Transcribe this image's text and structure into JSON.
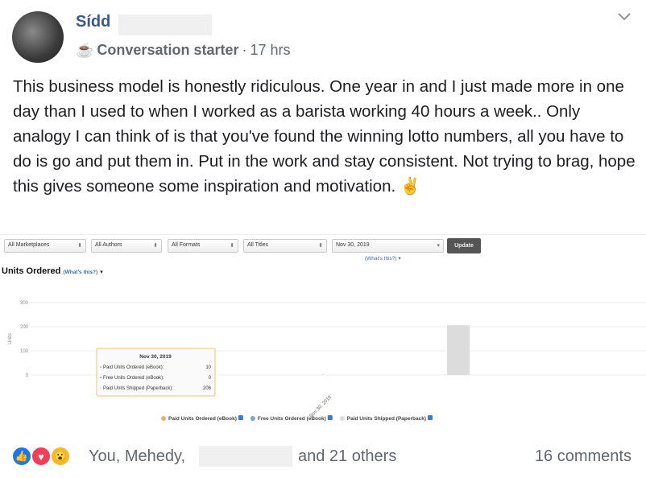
{
  "post": {
    "author": "Sídd",
    "badge_icon": "coffee-cup-icon",
    "badge": "Conversation starter",
    "separator": "·",
    "time": "17 hrs",
    "text": "This business model is honestly ridiculous. One year in and I just made more in one day than I used to when I worked as a barista working 40 hours a week.. Only analogy I can think of is that you've found the winning lotto numbers, all you have to do is go and put them in. Put in the work and stay consistent. Not trying to brag, hope this gives someone some inspiration and motivation. ✌️"
  },
  "report": {
    "filters": [
      "All Marketplaces",
      "All Authors",
      "All Formats",
      "All Titles",
      "Nov 30, 2019"
    ],
    "update_label": "Update",
    "whats_this": "(What's this?)",
    "section_title": "Units Ordered",
    "tooltip": {
      "title": "Nov 30, 2019",
      "rows": [
        {
          "label": "Paid Units Ordered (eBook):",
          "value": "10"
        },
        {
          "label": "Free Units Ordered (eBook):",
          "value": "0"
        },
        {
          "label": "Paid Units Shipped (Paperback):",
          "value": "206"
        }
      ]
    }
  },
  "chart_data": {
    "type": "bar",
    "ylabel": "Units",
    "ylim": [
      0,
      300
    ],
    "yticks": [
      "0",
      "100",
      "200",
      "300"
    ],
    "categories": [
      "Nov 30, 2019"
    ],
    "grid": true,
    "legend_placement": "bottom",
    "series": [
      {
        "name": "Paid Units Ordered (eBook)",
        "values": [
          10
        ],
        "color": "#f0b060"
      },
      {
        "name": "Free Units Ordered (eBook)",
        "values": [
          0
        ],
        "color": "#7ba7e0"
      },
      {
        "name": "Paid Units Shipped (Paperback)",
        "values": [
          206
        ],
        "color": "#dcdcdc"
      }
    ]
  },
  "footer": {
    "reactions": [
      "like-icon",
      "love-icon",
      "wow-icon"
    ],
    "names": "You, Mehedy,",
    "others": "and 21 others",
    "comments": "16 comments"
  },
  "colors": {
    "link": "#385898",
    "secondary": "#606770"
  }
}
